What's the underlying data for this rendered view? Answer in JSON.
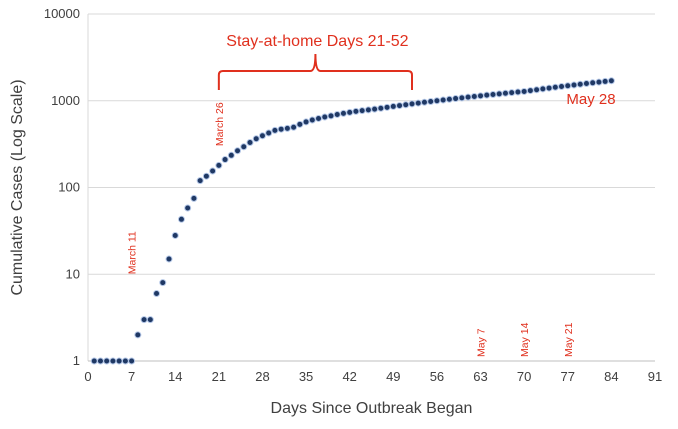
{
  "colors": {
    "marker_fill": "#1f3864",
    "marker_stroke": "#b4c7e7",
    "annotation": "#e0301e",
    "gridline": "#d9d9d9",
    "text": "#404040"
  },
  "chart_data": {
    "type": "scatter",
    "title": "",
    "xlabel": "Days Since Outbreak Began",
    "ylabel": "Cumulative Cases (Log Scale)",
    "xlim": [
      0,
      91
    ],
    "ylim": [
      1,
      10000
    ],
    "y_scale": "log",
    "grid": "horizontal gridlines",
    "legend": "none",
    "x_ticks": [
      0,
      7,
      14,
      21,
      28,
      35,
      42,
      49,
      56,
      63,
      70,
      77,
      84,
      91
    ],
    "x_tick_labels": [
      "0",
      "7",
      "14",
      "21",
      "28",
      "35",
      "42",
      "49",
      "56",
      "63",
      "70",
      "77",
      "84",
      "91"
    ],
    "y_ticks": [
      1,
      10,
      100,
      1000,
      10000
    ],
    "y_tick_labels": [
      "1",
      "10",
      "100",
      "1000",
      "10000"
    ],
    "series": [
      {
        "points": [
          [
            1,
            1
          ],
          [
            2,
            1
          ],
          [
            3,
            1
          ],
          [
            4,
            1
          ],
          [
            5,
            1
          ],
          [
            6,
            1
          ],
          [
            7,
            1
          ],
          [
            8,
            2
          ],
          [
            9,
            3
          ],
          [
            10,
            3
          ],
          [
            11,
            6
          ],
          [
            12,
            8
          ],
          [
            13,
            15
          ],
          [
            14,
            28
          ],
          [
            15,
            43
          ],
          [
            16,
            58
          ],
          [
            17,
            75
          ],
          [
            18,
            120
          ],
          [
            19,
            135
          ],
          [
            20,
            155
          ],
          [
            21,
            180
          ],
          [
            22,
            210
          ],
          [
            23,
            235
          ],
          [
            24,
            265
          ],
          [
            25,
            295
          ],
          [
            26,
            330
          ],
          [
            27,
            365
          ],
          [
            28,
            395
          ],
          [
            29,
            425
          ],
          [
            30,
            455
          ],
          [
            31,
            470
          ],
          [
            32,
            480
          ],
          [
            33,
            495
          ],
          [
            34,
            535
          ],
          [
            35,
            570
          ],
          [
            36,
            600
          ],
          [
            37,
            625
          ],
          [
            38,
            650
          ],
          [
            39,
            670
          ],
          [
            40,
            695
          ],
          [
            41,
            715
          ],
          [
            42,
            735
          ],
          [
            43,
            755
          ],
          [
            44,
            770
          ],
          [
            45,
            785
          ],
          [
            46,
            800
          ],
          [
            47,
            820
          ],
          [
            48,
            840
          ],
          [
            49,
            860
          ],
          [
            50,
            880
          ],
          [
            51,
            900
          ],
          [
            52,
            920
          ],
          [
            53,
            940
          ],
          [
            54,
            960
          ],
          [
            55,
            980
          ],
          [
            56,
            1000
          ],
          [
            57,
            1020
          ],
          [
            58,
            1040
          ],
          [
            59,
            1060
          ],
          [
            60,
            1080
          ],
          [
            61,
            1100
          ],
          [
            62,
            1120
          ],
          [
            63,
            1140
          ],
          [
            64,
            1160
          ],
          [
            65,
            1180
          ],
          [
            66,
            1200
          ],
          [
            67,
            1220
          ],
          [
            68,
            1240
          ],
          [
            69,
            1260
          ],
          [
            70,
            1280
          ],
          [
            71,
            1310
          ],
          [
            72,
            1340
          ],
          [
            73,
            1370
          ],
          [
            74,
            1400
          ],
          [
            75,
            1430
          ],
          [
            76,
            1460
          ],
          [
            77,
            1490
          ],
          [
            78,
            1520
          ],
          [
            79,
            1550
          ],
          [
            80,
            1580
          ],
          [
            81,
            1610
          ],
          [
            82,
            1640
          ],
          [
            83,
            1670
          ],
          [
            84,
            1700
          ]
        ]
      }
    ],
    "annotations": {
      "bracket_label": "Stay-at-home Days 21-52",
      "bracket_range": [
        21,
        52
      ],
      "end_label": "May 28",
      "date_markers": [
        {
          "label": "March 11",
          "x": 7,
          "y": 10
        },
        {
          "label": "March 26",
          "x": 21,
          "y": 300
        },
        {
          "label": "May 7",
          "x": 63,
          "y": 1
        },
        {
          "label": "May 14",
          "x": 70,
          "y": 1
        },
        {
          "label": "May 21",
          "x": 77,
          "y": 1
        }
      ]
    }
  }
}
